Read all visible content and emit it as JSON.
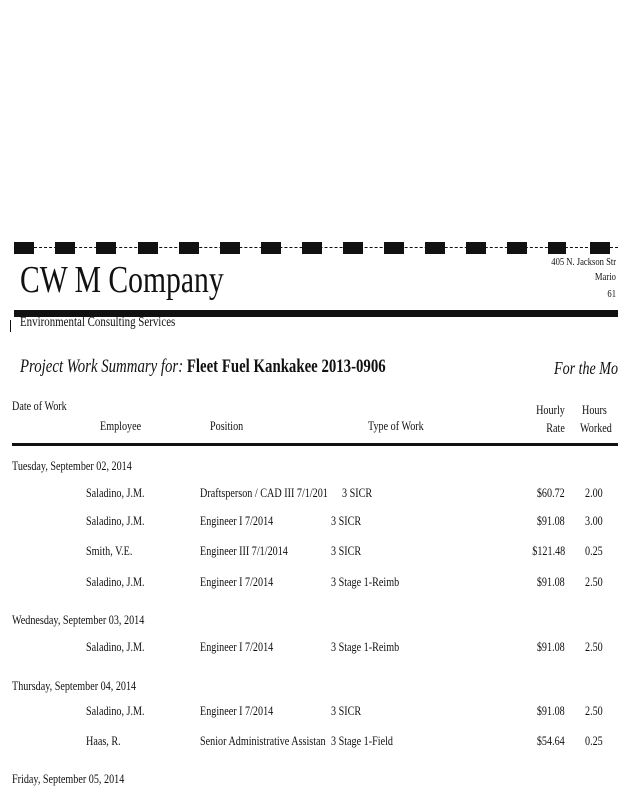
{
  "letterhead": {
    "company": "CW M Company",
    "address_lines": [
      "405 N. Jackson Str",
      "Mario",
      "61"
    ],
    "tagline": "Environmental Consulting Services"
  },
  "project": {
    "label": "Project Work Summary for:",
    "name": "Fleet Fuel Kankakee 2013-0906",
    "period_label": "For the Mo"
  },
  "columns": {
    "date": "Date of Work",
    "employee": "Employee",
    "position": "Position",
    "type": "Type of Work",
    "rate_1": "Hourly",
    "rate_2": "Rate",
    "hours_1": "Hours",
    "hours_2": "Worked"
  },
  "days": [
    {
      "date": "Tuesday, September 02, 2014",
      "rows": [
        {
          "employee": "Saladino, J.M.",
          "position": "Draftsperson / CAD III 7/1/201",
          "type": "3 SICR",
          "rate": "$60.72",
          "hours": "2.00"
        },
        {
          "employee": "Saladino, J.M.",
          "position": "Engineer I 7/2014",
          "type": "3 SICR",
          "rate": "$91.08",
          "hours": "3.00"
        },
        {
          "employee": "Smith, V.E.",
          "position": "Engineer III 7/1/2014",
          "type": "3 SICR",
          "rate": "$121.48",
          "hours": "0.25"
        },
        {
          "employee": "Saladino, J.M.",
          "position": "Engineer I 7/2014",
          "type": "3 Stage 1-Reimb",
          "rate": "$91.08",
          "hours": "2.50"
        }
      ]
    },
    {
      "date": "Wednesday, September 03, 2014",
      "rows": [
        {
          "employee": "Saladino, J.M.",
          "position": "Engineer I 7/2014",
          "type": "3 Stage 1-Reimb",
          "rate": "$91.08",
          "hours": "2.50"
        }
      ]
    },
    {
      "date": "Thursday, September 04, 2014",
      "rows": [
        {
          "employee": "Saladino, J.M.",
          "position": "Engineer I 7/2014",
          "type": "3 SICR",
          "rate": "$91.08",
          "hours": "2.50"
        },
        {
          "employee": "Haas, R.",
          "position": "Senior Administrative Assistan",
          "type": "3 Stage 1-Field",
          "rate": "$54.64",
          "hours": "0.25"
        }
      ]
    },
    {
      "date": "Friday, September 05, 2014",
      "rows": []
    }
  ]
}
